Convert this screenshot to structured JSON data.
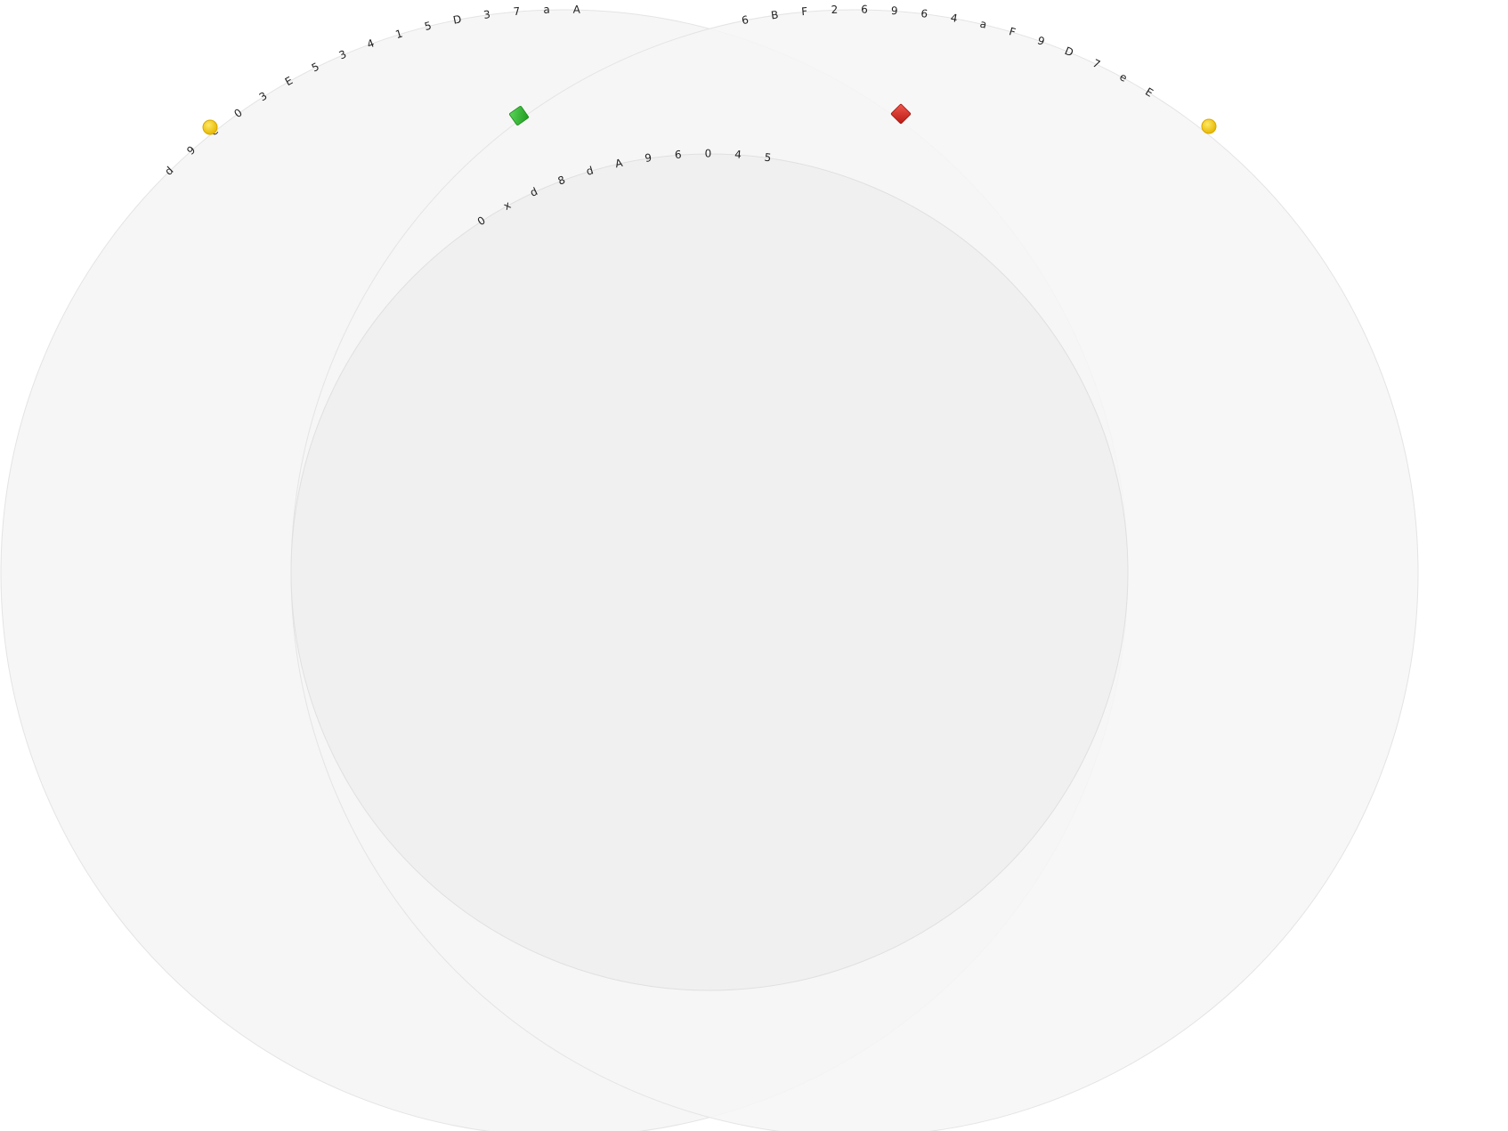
{
  "rings": [
    {
      "id": "left-ring",
      "text": "d9e03E5341 5D37aA",
      "chars": [
        "d",
        "9",
        "e",
        "0",
        "3",
        "E",
        "5",
        "3",
        "4",
        "1",
        "5",
        "D",
        "3",
        "7",
        "a",
        "A"
      ],
      "start_marker": {
        "shape": "circle",
        "icon": "yellow-dot-icon",
        "color": "#f5c800"
      },
      "fill": "#f6f6f6",
      "stroke": "#e4e4e4"
    },
    {
      "id": "right-ring",
      "chars": [
        "6",
        "B",
        "F",
        "2",
        "6",
        "9",
        "6",
        "4",
        "a",
        "F",
        "9",
        "D",
        "7",
        "e",
        "E"
      ],
      "end_marker": {
        "shape": "circle",
        "icon": "yellow-dot-icon",
        "color": "#f5c800"
      },
      "fill": "#f6f6f6",
      "stroke": "#e4e4e4"
    },
    {
      "id": "inner-ring",
      "chars": [
        "0",
        "x",
        "d",
        "8",
        "d",
        "A",
        "9",
        "6",
        "0",
        "4",
        "5"
      ],
      "start_marker": {
        "shape": "diamond",
        "icon": "green-diamond-icon",
        "color": "#2fb52f"
      },
      "end_marker": {
        "shape": "diamond",
        "icon": "red-diamond-icon",
        "color": "#d9291f"
      },
      "fill": "#efefef",
      "stroke": "#e0e0e0"
    }
  ]
}
